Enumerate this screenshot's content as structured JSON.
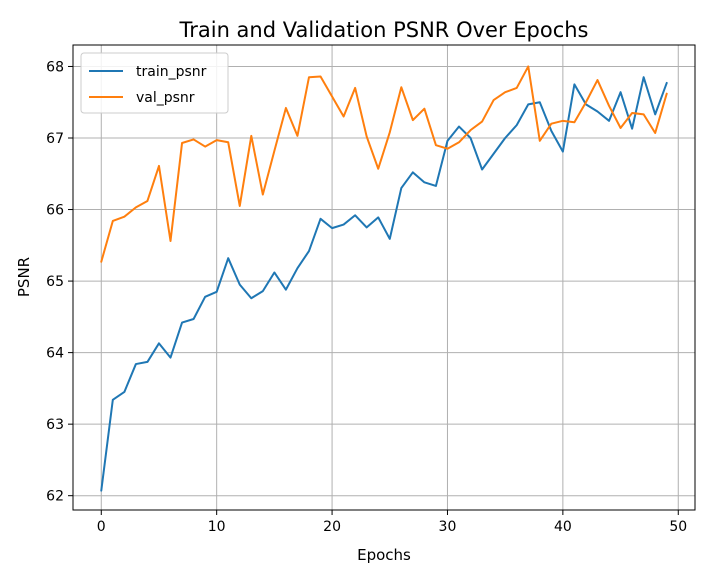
{
  "chart_data": {
    "type": "line",
    "title": "Train and Validation PSNR Over Epochs",
    "xlabel": "Epochs",
    "ylabel": "PSNR",
    "xlim": [
      -2.45,
      51.45
    ],
    "ylim": [
      61.8,
      68.3
    ],
    "xticks": [
      0,
      10,
      20,
      30,
      40,
      50
    ],
    "yticks": [
      62,
      63,
      64,
      65,
      66,
      67,
      68
    ],
    "grid": true,
    "legend_position": "top-left",
    "x": [
      0,
      1,
      2,
      3,
      4,
      5,
      6,
      7,
      8,
      9,
      10,
      11,
      12,
      13,
      14,
      15,
      16,
      17,
      18,
      19,
      20,
      21,
      22,
      23,
      24,
      25,
      26,
      27,
      28,
      29,
      30,
      31,
      32,
      33,
      34,
      35,
      36,
      37,
      38,
      39,
      40,
      41,
      42,
      43,
      44,
      45,
      46,
      47,
      48,
      49
    ],
    "series": [
      {
        "name": "train_psnr",
        "color": "#1f77b4",
        "values": [
          62.07,
          63.34,
          63.45,
          63.84,
          63.87,
          64.13,
          63.93,
          64.42,
          64.47,
          64.78,
          64.85,
          65.32,
          64.95,
          64.76,
          64.86,
          65.12,
          64.88,
          65.18,
          65.42,
          65.87,
          65.74,
          65.79,
          65.92,
          65.75,
          65.89,
          65.59,
          66.3,
          66.52,
          66.38,
          66.33,
          66.96,
          67.16,
          67.0,
          66.56,
          66.78,
          67.0,
          67.18,
          67.47,
          67.5,
          67.1,
          66.81,
          67.75,
          67.47,
          67.37,
          67.24,
          67.64,
          67.13,
          67.85,
          67.33,
          67.77
        ]
      },
      {
        "name": "val_psnr",
        "color": "#ff7f0e",
        "values": [
          65.27,
          65.84,
          65.9,
          66.03,
          66.12,
          66.61,
          65.56,
          66.93,
          66.98,
          66.88,
          66.97,
          66.94,
          66.05,
          67.03,
          66.21,
          66.82,
          67.42,
          67.03,
          67.85,
          67.86,
          67.58,
          67.3,
          67.7,
          67.02,
          66.57,
          67.08,
          67.71,
          67.25,
          67.41,
          66.9,
          66.85,
          66.94,
          67.11,
          67.23,
          67.53,
          67.64,
          67.7,
          68.0,
          66.96,
          67.2,
          67.24,
          67.22,
          67.5,
          67.81,
          67.45,
          67.14,
          67.35,
          67.33,
          67.07,
          67.62
        ]
      }
    ]
  }
}
